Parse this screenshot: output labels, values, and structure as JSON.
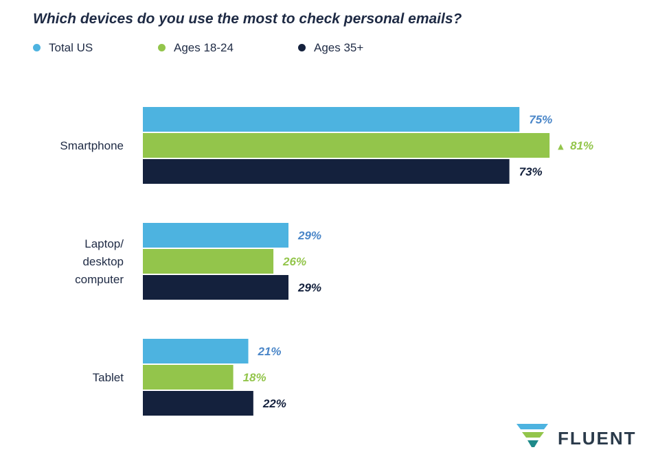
{
  "chart_data": {
    "type": "bar",
    "orientation": "horizontal",
    "title": "Which devices do you use the most to check personal emails?",
    "categories": [
      "Smartphone",
      "Laptop/\ndesktop\ncomputer",
      "Tablet"
    ],
    "series": [
      {
        "name": "Total US",
        "color": "#4db3e0",
        "label_color": "#4a86c8",
        "values": [
          75,
          29,
          21
        ],
        "labels": [
          "75%",
          "29%",
          "21%"
        ]
      },
      {
        "name": "Ages 18-24",
        "color": "#93c54b",
        "label_color": "#93c54b",
        "values": [
          81,
          26,
          18
        ],
        "labels": [
          "81%",
          "26%",
          "18%"
        ]
      },
      {
        "name": "Ages 35+",
        "color": "#14213d",
        "label_color": "#14213d",
        "values": [
          73,
          29,
          22
        ],
        "labels": [
          "73%",
          "29%",
          "22%"
        ]
      }
    ],
    "highlight": {
      "series": 1,
      "category": 0,
      "marker": "▲"
    },
    "legend_position": "top-left",
    "grid": false
  },
  "brand": {
    "name": "FLUENT",
    "logo_colors": [
      "#4db3e0",
      "#93c54b",
      "#1e8a8a"
    ]
  }
}
